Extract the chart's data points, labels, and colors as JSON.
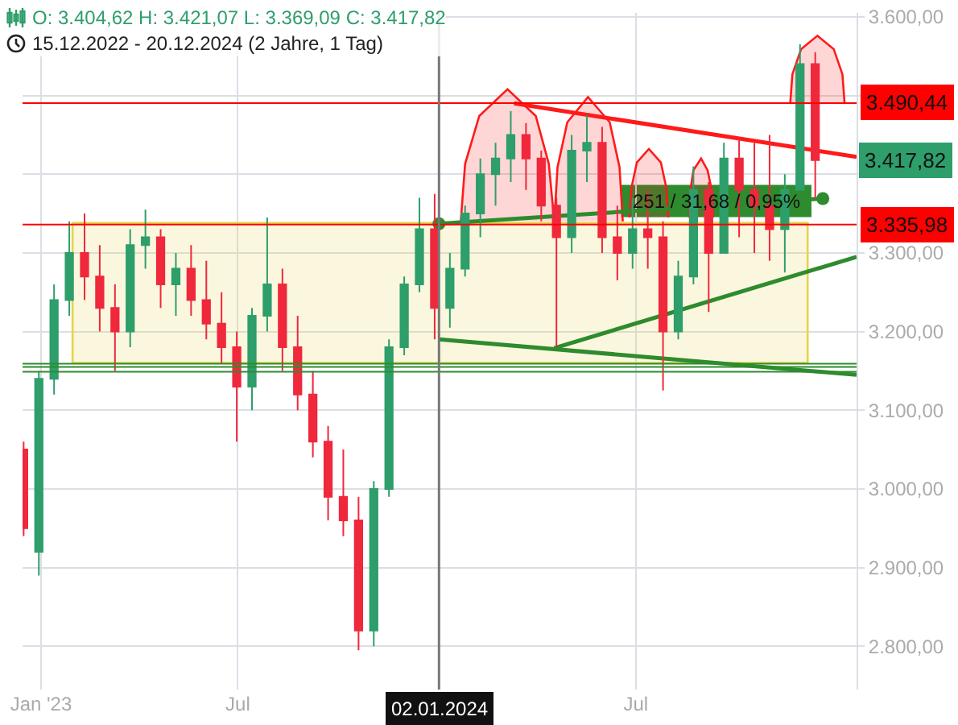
{
  "chart_data": {
    "type": "candlestick",
    "title": "O: 3.404,62  H: 3.421,07  L: 3.369,09  C: 3.417,82",
    "subtitle": "15.12.2022 - 20.12.2024  (2 Jahre, 1 Tag)",
    "x": [
      "2022-12-16",
      "2022-12-30",
      "2023-01-13",
      "2023-01-27",
      "2023-02-10",
      "2023-02-24",
      "2023-03-10",
      "2023-03-24",
      "2023-04-07",
      "2023-04-21",
      "2023-05-05",
      "2023-05-19",
      "2023-06-02",
      "2023-06-16",
      "2023-06-30",
      "2023-07-14",
      "2023-07-28",
      "2023-08-11",
      "2023-08-25",
      "2023-09-08",
      "2023-09-22",
      "2023-10-06",
      "2023-10-20",
      "2023-11-03",
      "2023-11-17",
      "2023-12-01",
      "2023-12-15",
      "2023-12-29",
      "2024-01-12",
      "2024-01-26",
      "2024-02-09",
      "2024-02-23",
      "2024-03-08",
      "2024-03-22",
      "2024-04-05",
      "2024-04-19",
      "2024-05-03",
      "2024-05-17",
      "2024-05-31",
      "2024-06-14",
      "2024-06-28",
      "2024-07-12",
      "2024-07-26",
      "2024-08-09",
      "2024-08-23",
      "2024-09-06",
      "2024-09-20",
      "2024-10-04",
      "2024-10-18",
      "2024-11-01",
      "2024-11-15",
      "2024-11-29",
      "2024-12-13"
    ],
    "ohlc": [
      [
        3050,
        3060,
        2940,
        2950
      ],
      [
        2920,
        3150,
        2890,
        3140
      ],
      [
        3140,
        3260,
        3120,
        3240
      ],
      [
        3240,
        3340,
        3220,
        3300
      ],
      [
        3300,
        3350,
        3240,
        3270
      ],
      [
        3270,
        3310,
        3200,
        3230
      ],
      [
        3230,
        3260,
        3150,
        3200
      ],
      [
        3200,
        3330,
        3180,
        3310
      ],
      [
        3310,
        3355,
        3280,
        3320
      ],
      [
        3320,
        3330,
        3230,
        3260
      ],
      [
        3260,
        3300,
        3220,
        3280
      ],
      [
        3280,
        3310,
        3220,
        3240
      ],
      [
        3240,
        3290,
        3190,
        3210
      ],
      [
        3210,
        3250,
        3160,
        3180
      ],
      [
        3180,
        3200,
        3060,
        3130
      ],
      [
        3130,
        3230,
        3100,
        3220
      ],
      [
        3220,
        3345,
        3200,
        3260
      ],
      [
        3260,
        3280,
        3150,
        3180
      ],
      [
        3180,
        3220,
        3100,
        3120
      ],
      [
        3120,
        3150,
        3040,
        3060
      ],
      [
        3060,
        3080,
        2960,
        2990
      ],
      [
        2990,
        3050,
        2940,
        2960
      ],
      [
        2960,
        2990,
        2795,
        2820
      ],
      [
        2820,
        3010,
        2800,
        3000
      ],
      [
        3000,
        3190,
        2990,
        3180
      ],
      [
        3180,
        3270,
        3170,
        3260
      ],
      [
        3260,
        3370,
        3250,
        3330
      ],
      [
        3330,
        3375,
        3190,
        3230
      ],
      [
        3230,
        3300,
        3205,
        3280
      ],
      [
        3280,
        3360,
        3270,
        3350
      ],
      [
        3350,
        3420,
        3320,
        3400
      ],
      [
        3400,
        3440,
        3360,
        3420
      ],
      [
        3420,
        3480,
        3390,
        3450
      ],
      [
        3450,
        3465,
        3380,
        3420
      ],
      [
        3420,
        3430,
        3340,
        3360
      ],
      [
        3360,
        3370,
        3180,
        3320
      ],
      [
        3320,
        3450,
        3300,
        3430
      ],
      [
        3430,
        3475,
        3390,
        3440
      ],
      [
        3440,
        3460,
        3300,
        3320
      ],
      [
        3320,
        3360,
        3265,
        3300
      ],
      [
        3300,
        3370,
        3280,
        3330
      ],
      [
        3330,
        3380,
        3280,
        3320
      ],
      [
        3320,
        3340,
        3125,
        3200
      ],
      [
        3200,
        3290,
        3190,
        3270
      ],
      [
        3270,
        3410,
        3260,
        3380
      ],
      [
        3380,
        3390,
        3225,
        3300
      ],
      [
        3300,
        3440,
        3300,
        3420
      ],
      [
        3420,
        3445,
        3320,
        3380
      ],
      [
        3380,
        3440,
        3300,
        3360
      ],
      [
        3360,
        3450,
        3290,
        3330
      ],
      [
        3330,
        3400,
        3275,
        3380
      ],
      [
        3380,
        3565,
        3380,
        3540
      ],
      [
        3540,
        3555,
        3369.09,
        3417.82
      ]
    ],
    "series": [
      {
        "type": "area",
        "color": "#e6d44a",
        "x": [
          "2023-01-30",
          "2023-01-30",
          "2024-12-06",
          "2024-12-06",
          "2023-01-30"
        ],
        "values": [
          3160,
          3338,
          3338,
          3160,
          3160
        ]
      },
      {
        "type": "area",
        "color": "#ff1a1a",
        "x": [
          "2024-01-22",
          "2024-01-26",
          "2024-02-08",
          "2024-03-05",
          "2024-03-31",
          "2024-04-12",
          "2024-04-17"
        ],
        "values": [
          3340,
          3413,
          3474,
          3508,
          3474,
          3413,
          3340
        ]
      },
      {
        "type": "area",
        "color": "#ff1a1a",
        "x": [
          "2024-04-17",
          "2024-04-20",
          "2024-04-29",
          "2024-05-18",
          "2024-06-07",
          "2024-06-16",
          "2024-06-19"
        ],
        "values": [
          3340,
          3409,
          3466,
          3498,
          3466,
          3409,
          3340
        ]
      },
      {
        "type": "area",
        "color": "#ff1a1a",
        "x": [
          "2024-06-25",
          "2024-06-27",
          "2024-07-02",
          "2024-07-13",
          "2024-07-24",
          "2024-07-29",
          "2024-07-31"
        ],
        "values": [
          3345,
          3383,
          3415,
          3432,
          3415,
          3383,
          3345
        ]
      },
      {
        "type": "area",
        "color": "#ff1a1a",
        "x": [
          "2024-08-19",
          "2024-08-20",
          "2024-08-23",
          "2024-08-30",
          "2024-09-05",
          "2024-09-09",
          "2024-09-10"
        ],
        "values": [
          3345,
          3378,
          3405,
          3420,
          3405,
          3378,
          3345
        ]
      },
      {
        "type": "area",
        "color": "#ff1a1a",
        "x": [
          "2024-11-20",
          "2024-11-22",
          "2024-11-30",
          "2024-12-15",
          "2024-12-30",
          "2025-01-07",
          "2025-01-09"
        ],
        "values": [
          3490,
          3527,
          3559,
          3576,
          3559,
          3527,
          3490
        ]
      },
      {
        "type": "line",
        "color": "#ff1a1a",
        "x": [
          "2024-03-11",
          "2025-01-20"
        ],
        "values": [
          3490,
          3422
        ]
      },
      {
        "type": "line",
        "color": "#2e8b2e",
        "x": [
          "2024-01-02",
          "2025-01-20"
        ],
        "values": [
          3190,
          3145
        ]
      },
      {
        "type": "line",
        "color": "#2e8b2e",
        "x": [
          "2024-04-17",
          "2025-01-20"
        ],
        "values": [
          3179,
          3295
        ]
      },
      {
        "type": "line",
        "color": "#2e8b2e",
        "marker": "circle",
        "x": [
          "2024-01-02",
          "2024-12-20"
        ],
        "values": [
          3337,
          3369
        ]
      }
    ],
    "xlim": [
      "2022-12-15",
      "2025-01-20"
    ],
    "xticks": [
      {
        "value": "2023-01-01",
        "label": "Jan '23"
      },
      {
        "value": "2023-07-01",
        "label": "Jul"
      },
      {
        "value": "2024-07-01",
        "label": "Jul"
      }
    ],
    "ylim": [
      2745,
      3605
    ],
    "yticks": [
      {
        "value": 2800,
        "label": "2.800,00"
      },
      {
        "value": 2900,
        "label": "2.900,00"
      },
      {
        "value": 3000,
        "label": "3.000,00"
      },
      {
        "value": 3100,
        "label": "3.100,00"
      },
      {
        "value": 3200,
        "label": "3.200,00"
      },
      {
        "value": 3300,
        "label": "3.300,00"
      },
      {
        "value": 3400,
        "label": null
      },
      {
        "value": 3500,
        "label": null
      },
      {
        "value": 3600,
        "label": "3.600,00"
      }
    ],
    "ref_lines": [
      {
        "axis": "y",
        "value": 3490.44,
        "label": "3.490,44",
        "color": "#ff0000"
      },
      {
        "axis": "y",
        "value": 3335.98,
        "label": "3.335,98",
        "color": "#ff0000"
      },
      {
        "axis": "y",
        "value": 3159,
        "color": "#2e8b2e"
      },
      {
        "axis": "y",
        "value": 3155,
        "color": "#2e8b2e"
      },
      {
        "axis": "y",
        "value": 3149,
        "color": "#2e8b2e"
      },
      {
        "axis": "x",
        "value": "2024-01-02",
        "label": "02.01.2024",
        "color": "#777777"
      }
    ],
    "annotations": [
      {
        "text": "3.417,82",
        "x": "2024-12-20",
        "y": 3417.82
      },
      {
        "text": "251 / 31,68 / 0,95%",
        "x": "2024-09-13",
        "y": 3366
      }
    ],
    "grid": true
  }
}
